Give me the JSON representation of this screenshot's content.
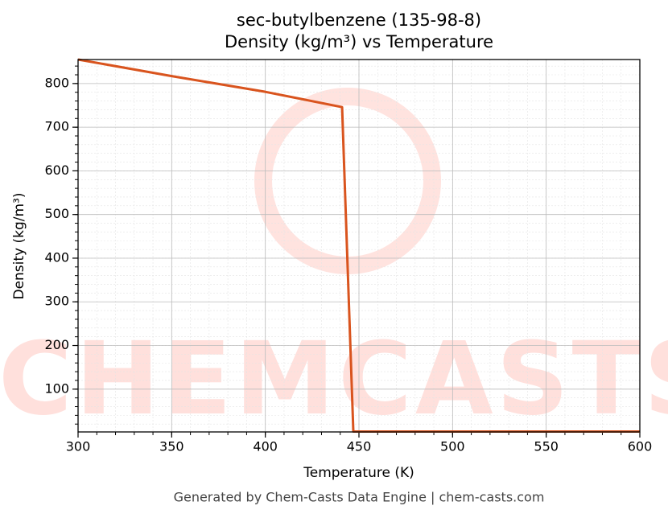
{
  "chart_data": {
    "type": "line",
    "title": "sec-butylbenzene (135-98-8)",
    "subtitle": "Density (kg/m³) vs Temperature",
    "x_label": "Temperature (K)",
    "y_label": "Density (kg/m³)",
    "footer": "Generated by Chem-Casts Data Engine | chem-casts.com",
    "watermark": "CHEMCASTS",
    "x": [
      300,
      350,
      400,
      441,
      447,
      500,
      550,
      600
    ],
    "series": [
      {
        "name": "Density",
        "color": "#d9541e",
        "values": [
          855,
          817,
          781,
          746,
          3,
          3,
          3,
          3
        ]
      }
    ],
    "xlim": [
      300,
      600
    ],
    "xticks": [
      300,
      350,
      400,
      450,
      500,
      550,
      600
    ],
    "ylim": [
      2,
      855
    ],
    "yticks": [
      100,
      200,
      300,
      400,
      500,
      600,
      700,
      800
    ],
    "grid": true
  }
}
